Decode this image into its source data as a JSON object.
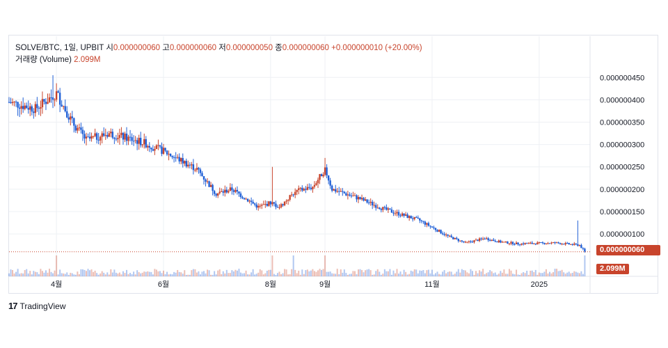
{
  "legend": {
    "symbol": "SOLVE/BTC, 1일, UPBIT",
    "open_label": "시",
    "open_value": "0.000000060",
    "high_label": "고",
    "high_value": "0.000000060",
    "low_label": "저",
    "low_value": "0.000000050",
    "close_label": "종",
    "close_value": "0.000000060",
    "change": "+0.000000010 (+20.00%)",
    "volume_label": "거래량 (Volume)",
    "volume_value": "2.099M"
  },
  "badges": {
    "price": "0.000000060",
    "volume": "2.099M"
  },
  "watermark": {
    "logo": "17",
    "text": "TradingView"
  },
  "colors": {
    "up": "#c8442c",
    "down": "#1f5fd6",
    "grid": "#eef0f4",
    "axis_text": "#131722"
  },
  "chart_data": {
    "type": "candlestick",
    "x_range": [
      "2024-03-05",
      "2025-01-30"
    ],
    "x_ticks": [
      {
        "date": "2024-04-01",
        "label": "4월"
      },
      {
        "date": "2024-06-01",
        "label": "6월"
      },
      {
        "date": "2024-08-01",
        "label": "8월"
      },
      {
        "date": "2024-09-01",
        "label": "9월"
      },
      {
        "date": "2024-11-01",
        "label": "11월"
      },
      {
        "date": "2025-01-01",
        "label": "2025"
      }
    ],
    "y_ticks": [
      "0.000000450",
      "0.000000400",
      "0.000000350",
      "0.000000300",
      "0.000000250",
      "0.000000200",
      "0.000000150",
      "0.000000100"
    ],
    "ylim": [
      5.5e-08,
      4.8e-07
    ],
    "last_price": 6e-08,
    "trend": [
      [
        "2024-03-05",
        3.95e-07
      ],
      [
        "2024-03-20",
        3.8e-07
      ],
      [
        "2024-04-01",
        4.15e-07
      ],
      [
        "2024-04-10",
        3.5e-07
      ],
      [
        "2024-04-18",
        3.1e-07
      ],
      [
        "2024-05-01",
        3.25e-07
      ],
      [
        "2024-05-20",
        3.05e-07
      ],
      [
        "2024-06-01",
        2.85e-07
      ],
      [
        "2024-06-20",
        2.45e-07
      ],
      [
        "2024-07-01",
        1.9e-07
      ],
      [
        "2024-07-10",
        2e-07
      ],
      [
        "2024-07-25",
        1.6e-07
      ],
      [
        "2024-08-01",
        1.7e-07
      ],
      [
        "2024-08-06",
        1.6e-07
      ],
      [
        "2024-08-15",
        1.95e-07
      ],
      [
        "2024-08-25",
        2.05e-07
      ],
      [
        "2024-09-01",
        2.45e-07
      ],
      [
        "2024-09-05",
        2e-07
      ],
      [
        "2024-09-20",
        1.8e-07
      ],
      [
        "2024-10-05",
        1.55e-07
      ],
      [
        "2024-10-25",
        1.3e-07
      ],
      [
        "2024-11-10",
        9.5e-08
      ],
      [
        "2024-11-20",
        8e-08
      ],
      [
        "2024-12-01",
        9e-08
      ],
      [
        "2024-12-10",
        8.2e-08
      ],
      [
        "2024-12-20",
        7.8e-08
      ],
      [
        "2025-01-10",
        8e-08
      ],
      [
        "2025-01-24",
        7.5e-08
      ],
      [
        "2025-01-27",
        6e-08
      ]
    ],
    "spikes": [
      {
        "date": "2024-08-02",
        "high": 2.5e-07
      },
      {
        "date": "2024-09-01",
        "high": 2.7e-07
      },
      {
        "date": "2025-01-23",
        "high": 1.3e-07
      },
      {
        "date": "2024-03-30",
        "high": 4.55e-07
      }
    ],
    "volume_spikes": [
      "2024-04-01",
      "2024-08-02",
      "2024-08-14",
      "2024-09-01",
      "2025-01-27"
    ]
  }
}
